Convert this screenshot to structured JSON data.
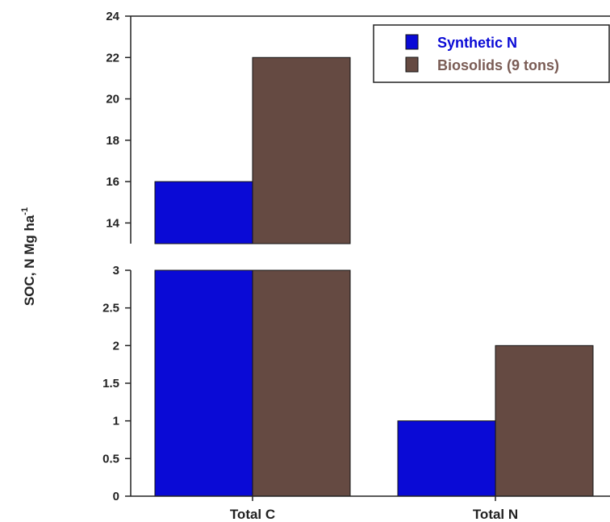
{
  "chart_data": {
    "type": "bar",
    "categories": [
      "Total C",
      "Total N"
    ],
    "series": [
      {
        "name": "Synthetic N",
        "values": [
          16,
          1
        ],
        "color": "#0a0ad6"
      },
      {
        "name": "Biosolids (9 tons)",
        "values": [
          22,
          2
        ],
        "color": "#654a42"
      }
    ],
    "ylabel": "SOC,  N Mg ha",
    "ylabel_superscript": "-1",
    "xlabel": "",
    "title": "",
    "broken_axis": true,
    "lower_ylim": [
      0,
      3
    ],
    "lower_ticks": [
      "0",
      "0.5",
      "1",
      "1.5",
      "2",
      "2.5",
      "3"
    ],
    "upper_ylim": [
      13,
      24
    ],
    "upper_ticks": [
      "14",
      "16",
      "18",
      "20",
      "22",
      "24"
    ],
    "legend_placement": "top-right",
    "grid": false,
    "legend_colors": {
      "Synthetic N": "#0a0ad6",
      "Biosolids (9 tons)": "#7a5c55"
    }
  }
}
